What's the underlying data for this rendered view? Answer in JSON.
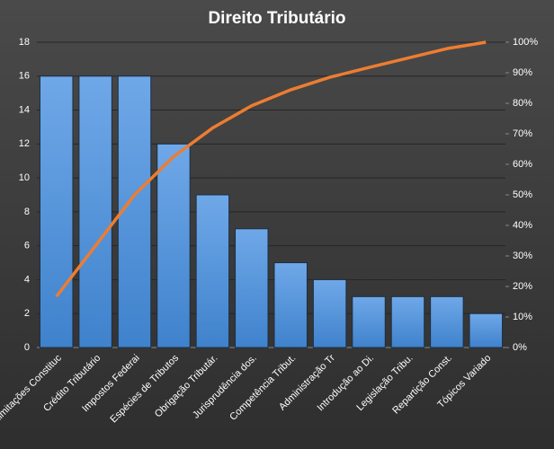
{
  "chart_data": {
    "type": "combo",
    "title": "Direito  Tributário",
    "categories": [
      "Limitações Constituc",
      "Crédito Tributário",
      "Impostos Federai",
      "Espécies de Tributos",
      "Obrigação Tributár.",
      "Jurisprudência dos.",
      "Competência Tribut.",
      "Administração Tr",
      "Introdução ao Di.",
      "Legislação Tribu.",
      "Repartição Const.",
      "Tópicos Variado"
    ],
    "series": [
      {
        "type": "bar",
        "color": "#4a8fd8",
        "values": [
          16,
          16,
          16,
          12,
          9,
          7,
          5,
          4,
          3,
          3,
          3,
          2
        ]
      },
      {
        "type": "line",
        "color": "#ed7d31",
        "axis": "y2",
        "values": [
          16.7,
          33.3,
          50,
          62.5,
          71.9,
          79.2,
          84.4,
          88.5,
          91.7,
          94.8,
          97.9,
          100
        ]
      }
    ],
    "ylim": [
      0,
      18
    ],
    "yticks": [
      0,
      2,
      4,
      6,
      8,
      10,
      12,
      14,
      16,
      18
    ],
    "y2lim": [
      0,
      100
    ],
    "y2ticks": [
      {
        "value": 0,
        "label": "0%"
      },
      {
        "value": 10,
        "label": "10%"
      },
      {
        "value": 20,
        "label": "20%"
      },
      {
        "value": 30,
        "label": "30%"
      },
      {
        "value": 40,
        "label": "40%"
      },
      {
        "value": 50,
        "label": "50%"
      },
      {
        "value": 60,
        "label": "60%"
      },
      {
        "value": 70,
        "label": "70%"
      },
      {
        "value": 80,
        "label": "80%"
      },
      {
        "value": 90,
        "label": "90%"
      },
      {
        "value": 100,
        "label": "100%"
      }
    ],
    "grid": true
  }
}
